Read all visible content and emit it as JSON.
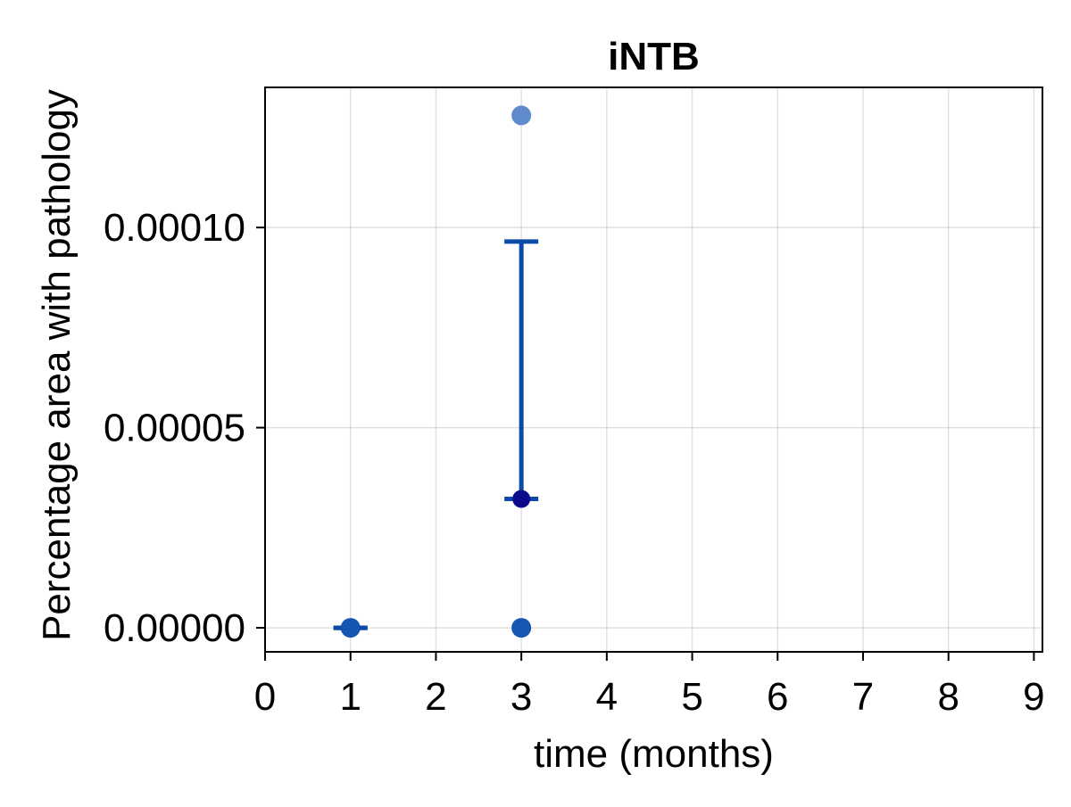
{
  "chart_data": {
    "type": "scatter",
    "title": "iNTB",
    "xlabel": "time (months)",
    "ylabel": "Percentage area with pathology",
    "xlim": [
      0,
      9.1
    ],
    "ylim": [
      -6e-06,
      0.000135
    ],
    "x_ticks": [
      0,
      1,
      2,
      3,
      4,
      5,
      6,
      7,
      8,
      9
    ],
    "x_tick_labels": [
      "0",
      "1",
      "2",
      "3",
      "4",
      "5",
      "6",
      "7",
      "8",
      "9"
    ],
    "y_ticks": [
      0,
      5e-05,
      0.0001
    ],
    "y_tick_labels": [
      "0.00000",
      "0.00005",
      "0.00010"
    ],
    "grid": true,
    "legend": "none",
    "colors": {
      "points": "#1656b3",
      "points_light": "#5f8acb",
      "mean": "#0a0a8a",
      "errorbar": "#0b4aa6"
    },
    "series": [
      {
        "kind": "individual_points",
        "points": [
          {
            "x": 1,
            "y": 0,
            "tone": "points"
          },
          {
            "x": 3,
            "y": 0,
            "tone": "points"
          },
          {
            "x": 3,
            "y": 0.000128,
            "tone": "points_light"
          }
        ]
      },
      {
        "kind": "mean_with_errorbars",
        "points": [
          {
            "x": 1,
            "y": 0,
            "upper": 0,
            "lower": 0
          },
          {
            "x": 3,
            "y": 3.22e-05,
            "upper": 9.65e-05,
            "lower": 3.22e-05
          }
        ]
      }
    ]
  }
}
